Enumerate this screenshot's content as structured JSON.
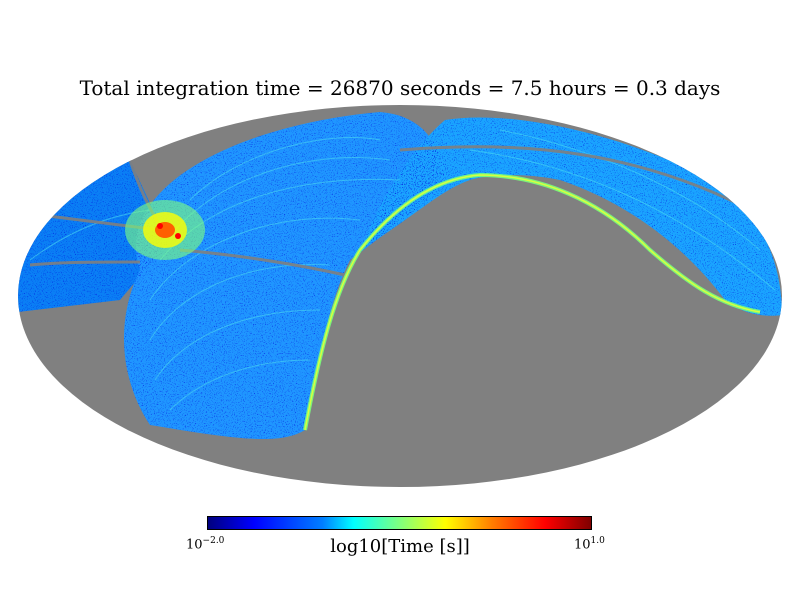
{
  "chart_data": {
    "type": "heatmap",
    "projection": "mollweide",
    "title": "Total integration time = 26870 seconds = 7.5 hours = 0.3 days",
    "colorbar": {
      "label": "log10[Time [s]]",
      "min_base": "10",
      "min_exp": "−2.0",
      "max_base": "10",
      "max_exp": "1.0",
      "vmin_log10": -2.0,
      "vmax_log10": 1.0,
      "colormap": "jet"
    },
    "colors": {
      "unobserved": "#808080",
      "background": "#ffffff"
    }
  }
}
